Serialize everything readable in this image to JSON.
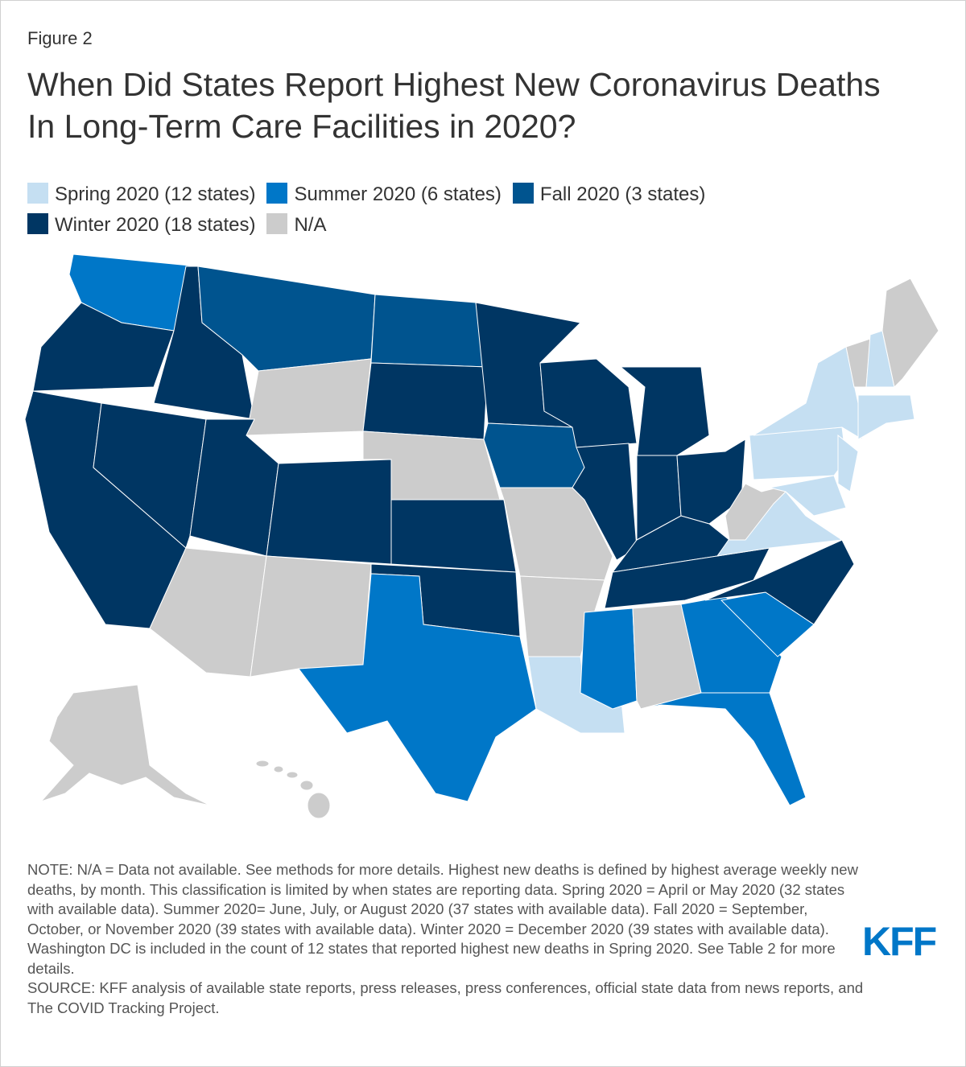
{
  "figure": "Figure 2",
  "title": "When Did States Report Highest New Coronavirus Deaths In Long-Term Care Facilities in 2020?",
  "legend": [
    {
      "label": "Spring 2020 (12 states)",
      "color": "#c5dff2"
    },
    {
      "label": "Summer 2020 (6 states)",
      "color": "#0077c8"
    },
    {
      "label": "Fall 2020 (3 states)",
      "color": "#00548f"
    },
    {
      "label": "Winter 2020 (18 states)",
      "color": "#003663"
    },
    {
      "label": "N/A",
      "color": "#cccccc"
    }
  ],
  "note": "NOTE: N/A = Data not available. See methods for more details. Highest new deaths is defined by highest average weekly new deaths, by month. This classification is limited by when states are reporting data. Spring 2020 = April or May 2020 (32 states with available data). Summer 2020= June, July, or August 2020 (37 states with available data). Fall 2020 = September, October, or November 2020 (39 states with available data). Winter 2020 = December 2020 (39 states with available data). Washington DC is included in the count of 12 states that reported highest new deaths in Spring 2020. See Table 2 for more details.",
  "source": "SOURCE: KFF analysis of available state reports, press releases, press conferences, official state data from news reports, and The COVID Tracking Project.",
  "logo": "KFF"
}
